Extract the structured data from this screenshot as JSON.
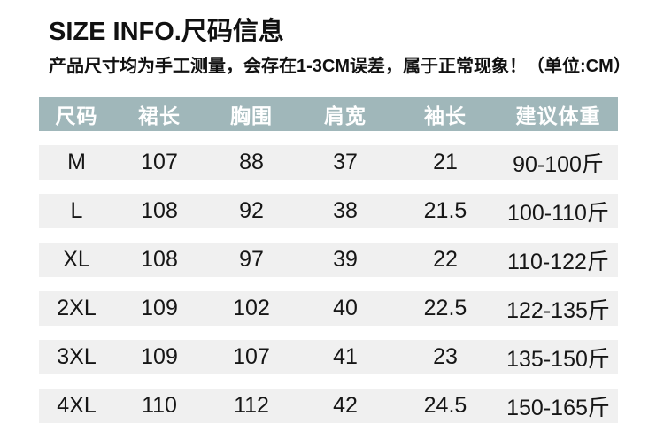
{
  "header": {
    "title": "SIZE INFO.尺码信息",
    "note": "产品尺寸均为手工测量，会存在1-3CM误差，属于正常现象！（单位:CM）"
  },
  "colors": {
    "page_bg": "#ffffff",
    "table_header_bg": "#a0b7ba",
    "table_header_text": "#ffffff",
    "row_bg": "#f0f0f0",
    "text": "#161616",
    "title_text": "#111111"
  },
  "chart_data": {
    "type": "table",
    "title": "SIZE INFO.尺码信息",
    "subtitle": "产品尺寸均为手工测量，会存在1-3CM误差，属于正常现象！（单位:CM）",
    "unit": "CM",
    "columns": [
      "尺码",
      "裙长",
      "胸围",
      "肩宽",
      "袖长",
      "建议体重"
    ],
    "rows": [
      [
        "M",
        "107",
        "88",
        "37",
        "21",
        "90-100斤"
      ],
      [
        "L",
        "108",
        "92",
        "38",
        "21.5",
        "100-110斤"
      ],
      [
        "XL",
        "108",
        "97",
        "39",
        "22",
        "110-122斤"
      ],
      [
        "2XL",
        "109",
        "102",
        "40",
        "22.5",
        "122-135斤"
      ],
      [
        "3XL",
        "109",
        "107",
        "41",
        "23",
        "135-150斤"
      ],
      [
        "4XL",
        "110",
        "112",
        "42",
        "24.5",
        "150-165斤"
      ]
    ]
  }
}
